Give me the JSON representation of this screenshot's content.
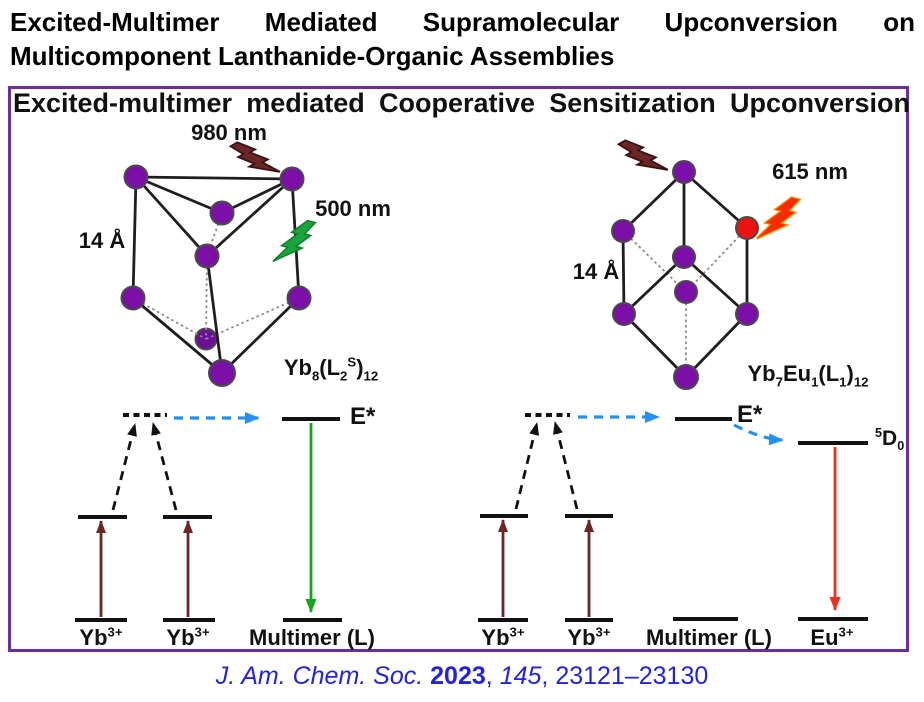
{
  "title": {
    "line1": "Excited-Multimer Mediated Supramolecular Upconversion on",
    "line2": "Multicomponent Lanthanide-Organic Assemblies"
  },
  "figure_header": "Excited-multimer mediated Cooperative Sensitization Upconversion",
  "left_panel": {
    "laser_label": "980 nm",
    "emission_label": "500 nm",
    "distance_label": "14 Å",
    "formula": [
      [
        "t",
        "Yb"
      ],
      [
        "sub",
        "8"
      ],
      [
        "t",
        "(L"
      ],
      [
        "sub",
        "2"
      ],
      [
        "sup",
        "S"
      ],
      [
        "t",
        ")"
      ],
      [
        "sub",
        "12"
      ]
    ],
    "e_star_label": "E*",
    "ion1": [
      [
        "t",
        "Yb"
      ],
      [
        "sup",
        "3+"
      ]
    ],
    "ion2": [
      [
        "t",
        "Yb"
      ],
      [
        "sup",
        "3+"
      ]
    ],
    "multimer_label": "Multimer (L)"
  },
  "right_panel": {
    "laser_label": "615 nm",
    "distance_label": "14 Å",
    "formula": [
      [
        "t",
        "Yb"
      ],
      [
        "sub",
        "7"
      ],
      [
        "t",
        "Eu"
      ],
      [
        "sub",
        "1"
      ],
      [
        "t",
        "(L"
      ],
      [
        "sub",
        "1"
      ],
      [
        "t",
        ")"
      ],
      [
        "sub",
        "12"
      ]
    ],
    "e_star_label": "E*",
    "d0_label": [
      [
        "sup",
        "5"
      ],
      [
        "t",
        "D"
      ],
      [
        "sub",
        "0"
      ]
    ],
    "ion1": [
      [
        "t",
        "Yb"
      ],
      [
        "sup",
        "3+"
      ]
    ],
    "ion2": [
      [
        "t",
        "Yb"
      ],
      [
        "sup",
        "3+"
      ]
    ],
    "multimer_label": "Multimer (L)",
    "acceptor_label": [
      [
        "t",
        "Eu"
      ],
      [
        "sup",
        "3+"
      ]
    ]
  },
  "citation": {
    "journal": "J. Am. Chem. Soc.",
    "year": "2023",
    "sep": ", ",
    "volume": "145",
    "pages": "23121–23130"
  },
  "colors": {
    "frame_purple": "#6B2E9E",
    "node_purple": "#7B0FA8",
    "eu_node_red": "#EE1111",
    "nir_laser_darkred": "#6B2626",
    "upconversion_green": "#1CA43C",
    "emission_red_bolt": "#F42C00",
    "emission_bolt_outline_orange": "#FF9500",
    "energy_transfer_blue": "#2590F2",
    "emission_green_arrow": "#17A31C",
    "emission_red_arrow": "#F02F1E",
    "citation_blue": "#2222DD"
  }
}
